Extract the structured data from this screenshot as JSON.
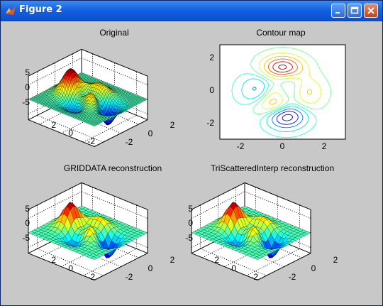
{
  "window": {
    "title": "Figure 2",
    "icons": {
      "app": "matlab-icon",
      "minimize": "minimize-icon",
      "maximize": "maximize-icon",
      "close": "close-icon"
    }
  },
  "colors": {
    "figure_bg": "#c8c8c8",
    "axes_bg": "#ffffff",
    "titlebar": "#1662e0"
  },
  "chart_data": [
    {
      "type": "surface",
      "title": "Original",
      "x_ticks": [
        "2",
        "0",
        "-2"
      ],
      "y_ticks": [
        "-2",
        "0",
        "2"
      ],
      "z_ticks": [
        "5",
        "0",
        "-5"
      ],
      "xlim": [
        -3,
        3
      ],
      "ylim": [
        -3,
        3
      ],
      "zlim": [
        -8,
        8
      ],
      "grid": true,
      "function": "peaks"
    },
    {
      "type": "contour",
      "title": "Contour map",
      "x_ticks": [
        "-2",
        "0",
        "2"
      ],
      "y_ticks": [
        "2",
        "0",
        "-2"
      ],
      "xlim": [
        -3,
        3
      ],
      "ylim": [
        -3,
        3
      ],
      "function": "peaks"
    },
    {
      "type": "surface",
      "title": "GRIDDATA reconstruction",
      "x_ticks": [
        "2",
        "0",
        "-2"
      ],
      "y_ticks": [
        "-2",
        "0",
        "2"
      ],
      "z_ticks": [
        "5",
        "0",
        "-5"
      ],
      "xlim": [
        -3,
        3
      ],
      "ylim": [
        -3,
        3
      ],
      "zlim": [
        -8,
        8
      ],
      "grid": true,
      "function": "peaks"
    },
    {
      "type": "surface",
      "title": "TriScatteredInterp reconstruction",
      "x_ticks": [
        "2",
        "0",
        "-2"
      ],
      "y_ticks": [
        "-2",
        "0",
        "2"
      ],
      "z_ticks": [
        "5",
        "0",
        "-5"
      ],
      "xlim": [
        -3,
        3
      ],
      "ylim": [
        -3,
        3
      ],
      "zlim": [
        -8,
        8
      ],
      "grid": true,
      "function": "peaks"
    }
  ]
}
